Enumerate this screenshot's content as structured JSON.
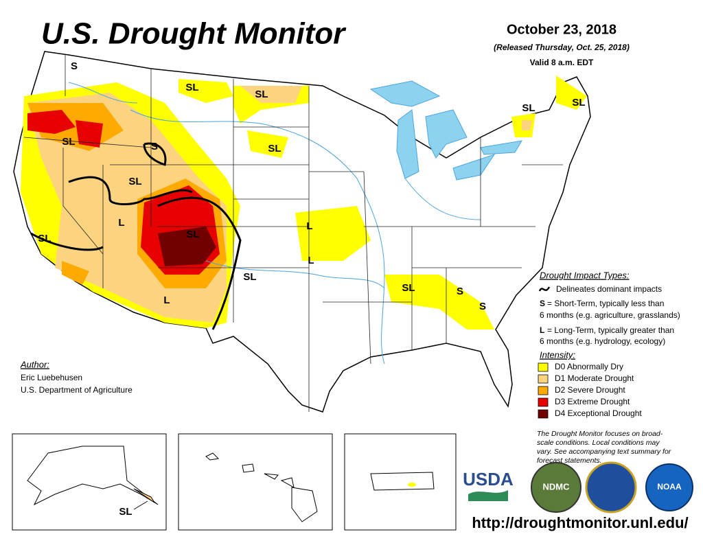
{
  "title": "U.S. Drought Monitor",
  "date": "October 23, 2018",
  "released": "(Released Thursday, Oct. 25, 2018)",
  "valid": "Valid 8 a.m. EDT",
  "map_labels": [
    "S",
    "SL",
    "SL",
    "SL",
    "S",
    "SL",
    "SL",
    "L",
    "SL",
    "SL",
    "L",
    "L",
    "SL",
    "SL",
    "S",
    "S",
    "L",
    "SL",
    "SL",
    "SL"
  ],
  "impact_types": {
    "title": "Drought Impact Types:",
    "delineates": "Delineates dominant impacts",
    "short_key": "S",
    "short_lines": [
      "= Short-Term, typically less than",
      "6 months (e.g. agriculture, grasslands)"
    ],
    "long_key": "L",
    "long_lines": [
      "= Long-Term, typically greater than",
      "6 months (e.g. hydrology, ecology)"
    ]
  },
  "intensity": {
    "title": "Intensity:",
    "items": [
      {
        "label": "D0 Abnormally Dry",
        "color": "#ffff00"
      },
      {
        "label": "D1 Moderate Drought",
        "color": "#fcd37f"
      },
      {
        "label": "D2 Severe Drought",
        "color": "#ffaa00"
      },
      {
        "label": "D3 Extreme Drought",
        "color": "#e60000"
      },
      {
        "label": "D4 Exceptional Drought",
        "color": "#730000"
      }
    ]
  },
  "author": {
    "heading": "Author:",
    "name": "Eric Luebehusen",
    "org": "U.S. Department of Agriculture"
  },
  "note_lines": [
    "The Drought Monitor focuses on broad-",
    "scale conditions. Local conditions may",
    "vary. See accompanying text summary for",
    "forecast statements."
  ],
  "logos": [
    "USDA",
    "NDMC",
    "NOAA"
  ],
  "url": "http://droughtmonitor.unl.edu/"
}
